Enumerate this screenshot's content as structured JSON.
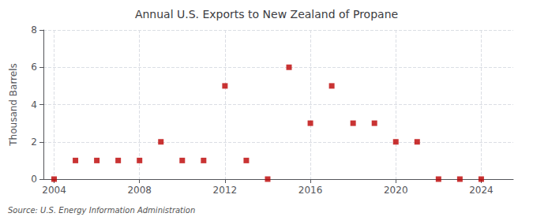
{
  "chart_data": {
    "type": "scatter",
    "title": "Annual U.S. Exports to New Zealand of Propane",
    "ylabel": "Thousand Barrels",
    "source": "Source: U.S. Energy Information Administration",
    "x": [
      2004,
      2005,
      2006,
      2007,
      2008,
      2009,
      2010,
      2011,
      2012,
      2013,
      2014,
      2015,
      2016,
      2017,
      2018,
      2019,
      2020,
      2021,
      2022,
      2023,
      2024
    ],
    "values": [
      0,
      1,
      1,
      1,
      1,
      2,
      1,
      1,
      5,
      1,
      0,
      6,
      3,
      5,
      3,
      3,
      2,
      2,
      0,
      0,
      0
    ],
    "xlim": [
      2003.5,
      2025.5
    ],
    "ylim": [
      0,
      8
    ],
    "xticks": [
      2004,
      2008,
      2012,
      2016,
      2020,
      2024
    ],
    "yticks": [
      0,
      2,
      4,
      6,
      8
    ],
    "color": "#bb0000",
    "marker": "square",
    "grid": true
  }
}
